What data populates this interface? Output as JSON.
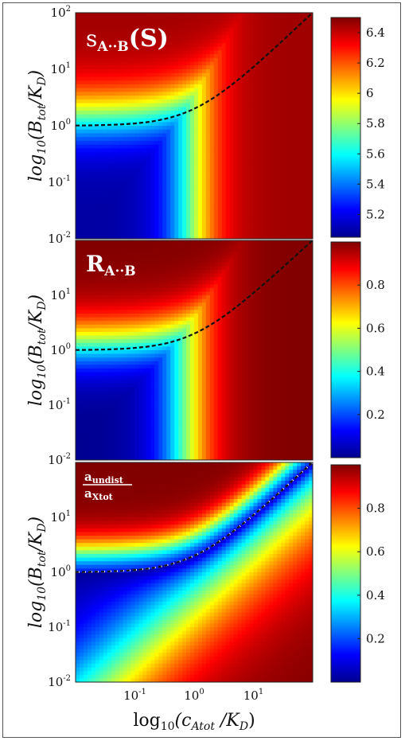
{
  "chart_data": [
    {
      "type": "heatmap",
      "panel_label": "s_{A··B}(S)",
      "ylabel": "log10(B_tot/K_D)",
      "xlabel": "",
      "x_scale": "log",
      "y_scale": "log",
      "xlim": [
        0.01,
        100
      ],
      "ylim": [
        0.01,
        100
      ],
      "y_ticks": [
        "10^-2",
        "10^-1",
        "10^0",
        "10^1",
        "10^2"
      ],
      "colorbar": {
        "min": 5.05,
        "max": 6.5,
        "ticks": [
          "5.2",
          "5.4",
          "5.6",
          "5.8",
          "6",
          "6.2",
          "6.4"
        ],
        "tick_values": [
          5.2,
          5.4,
          5.6,
          5.8,
          6.0,
          6.2,
          6.4
        ]
      },
      "dashed_curve": {
        "description_values": "B_tot = K_D + c_Atot",
        "points": [
          [
            0.01,
            1.0
          ],
          [
            0.1,
            1.1
          ],
          [
            1,
            2.0
          ],
          [
            10,
            11
          ],
          [
            100,
            101
          ]
        ]
      }
    },
    {
      "type": "heatmap",
      "panel_label": "R_{A··B}",
      "ylabel": "log10(B_tot/K_D)",
      "xlabel": "",
      "x_scale": "log",
      "y_scale": "log",
      "xlim": [
        0.01,
        100
      ],
      "ylim": [
        0.01,
        100
      ],
      "y_ticks": [
        "10^-2",
        "10^-1",
        "10^0",
        "10^1"
      ],
      "colorbar": {
        "min": 0,
        "max": 1,
        "ticks": [
          "0.2",
          "0.4",
          "0.6",
          "0.8"
        ],
        "tick_values": [
          0.2,
          0.4,
          0.6,
          0.8
        ]
      },
      "dashed_curve": {
        "points": [
          [
            0.01,
            1.0
          ],
          [
            0.1,
            1.1
          ],
          [
            1,
            2.0
          ],
          [
            10,
            11
          ],
          [
            100,
            101
          ]
        ]
      }
    },
    {
      "type": "heatmap",
      "panel_label": "a_undist / a_Xtot",
      "ylabel": "log10(B_tot/K_D)",
      "xlabel": "log10(c_Atot /K_D)",
      "x_scale": "log",
      "y_scale": "log",
      "xlim": [
        0.01,
        100
      ],
      "ylim": [
        0.01,
        100
      ],
      "x_ticks": [
        "10^-1",
        "10^0",
        "10^1"
      ],
      "y_ticks": [
        "10^-2",
        "10^-1",
        "10^0",
        "10^1"
      ],
      "colorbar": {
        "min": 0,
        "max": 1,
        "ticks": [
          "0.2",
          "0.4",
          "0.6",
          "0.8"
        ],
        "tick_values": [
          0.2,
          0.4,
          0.6,
          0.8
        ]
      },
      "dashed_curve": {
        "points": [
          [
            0.01,
            1.0
          ],
          [
            0.1,
            1.1
          ],
          [
            1,
            2.0
          ],
          [
            10,
            11
          ],
          [
            100,
            101
          ]
        ]
      }
    }
  ],
  "labels": {
    "ylabel_text": "log",
    "ylabel_sub": "10",
    "ylabel_rest": "(B",
    "ylabel_tot": "tot",
    "ylabel_end": "/K",
    "ylabel_d": "D",
    "ylabel_close": ")",
    "xlabel_main": "log",
    "xlabel_sub": "10",
    "xlabel_rest": "(c",
    "xlabel_atot": "Atot",
    "xlabel_end": " /K",
    "xlabel_d": "D",
    "xlabel_close": ")",
    "p1_s": "s",
    "p1_sub": "A··B",
    "p1_rest": "(S)",
    "p2_r": "R",
    "p2_sub": "A··B",
    "p3_num": "a",
    "p3_num_sub": "undist",
    "p3_den": "a",
    "p3_den_sub": "Xtot",
    "tick_base": "10"
  },
  "colors": {
    "jet": [
      "#00008f",
      "#0000ff",
      "#00ffff",
      "#ffff00",
      "#ff0000",
      "#800000"
    ],
    "dashed": "#111111"
  }
}
